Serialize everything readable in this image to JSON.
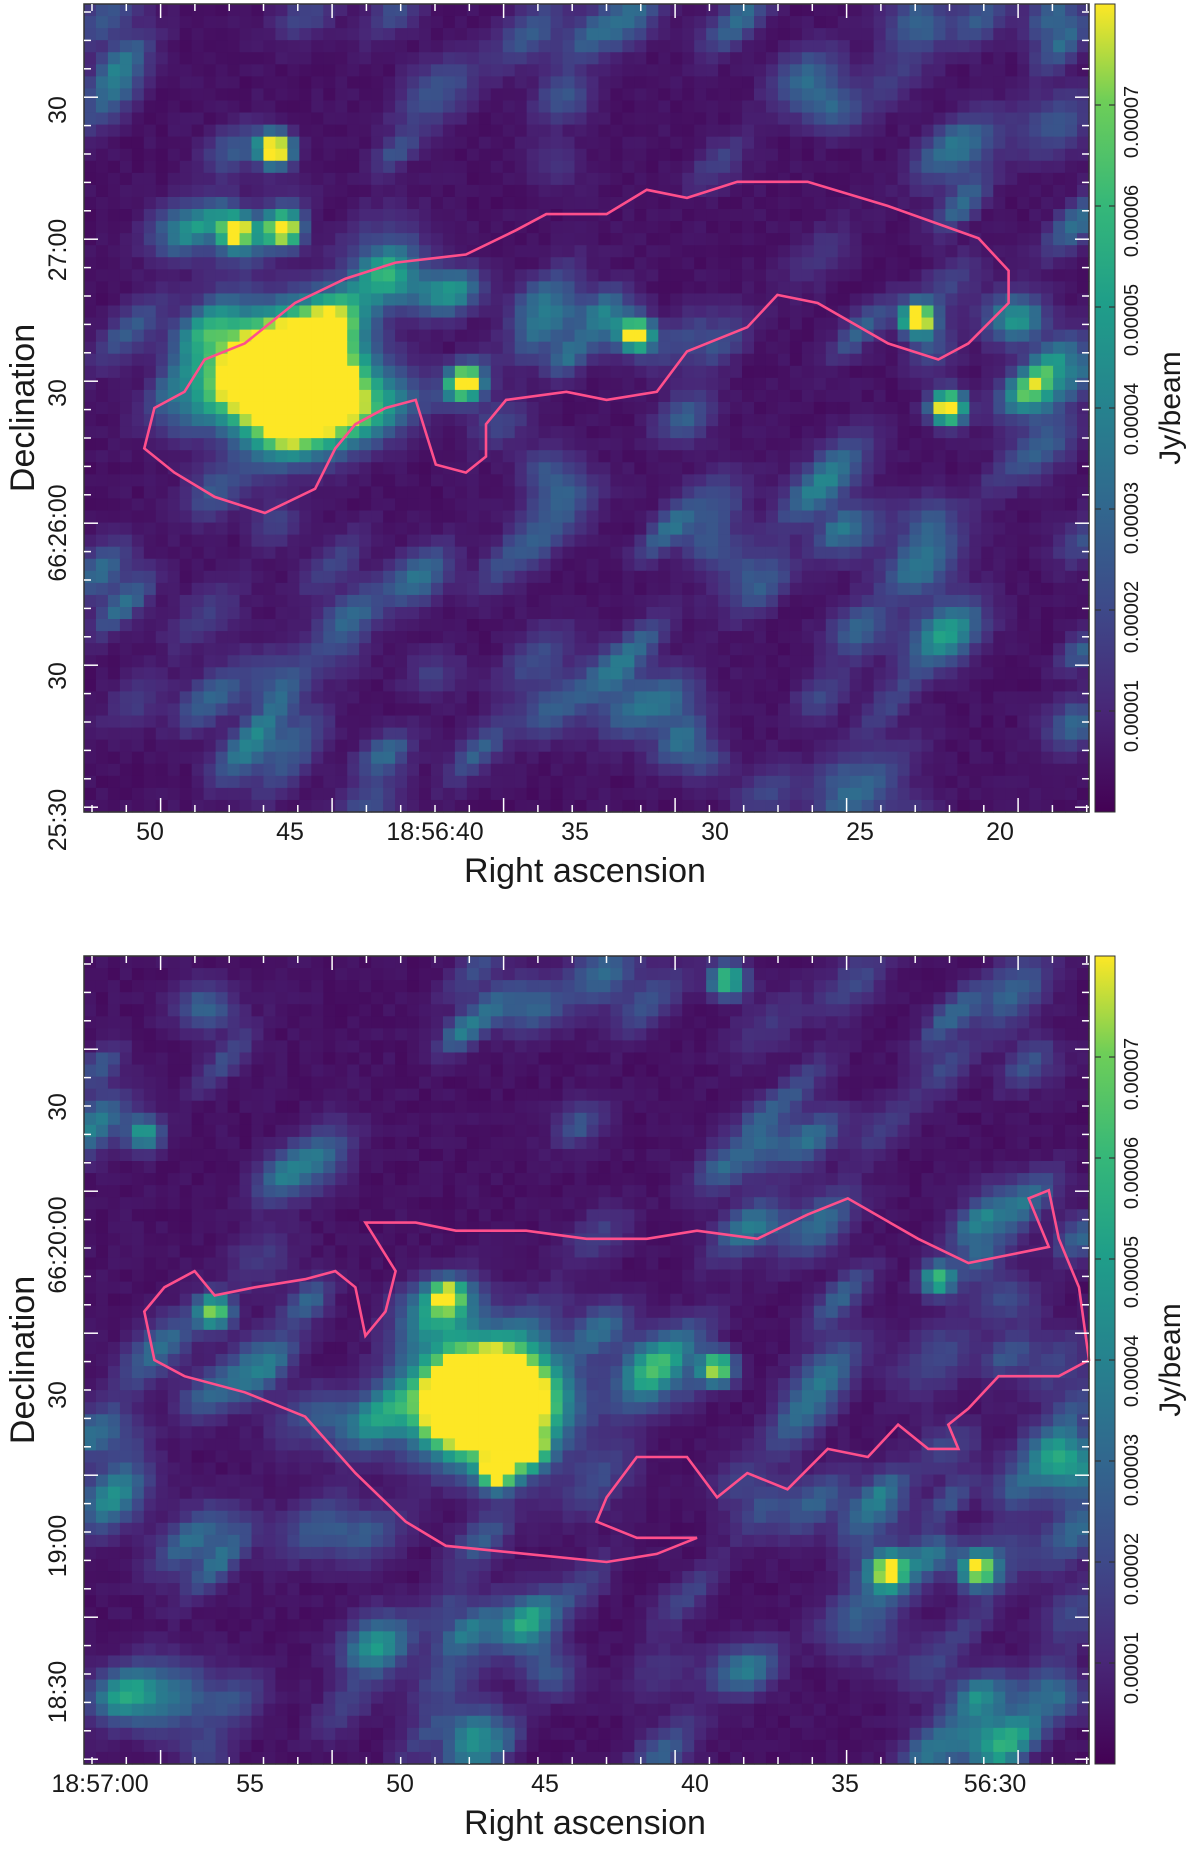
{
  "chart_data": [
    {
      "type": "heatmap",
      "title": "",
      "xlabel": "Right ascension",
      "ylabel": "Declination",
      "x_ticks": [
        "50",
        "45",
        "18:56:40",
        "35",
        "30",
        "25",
        "20"
      ],
      "y_ticks": [
        "30",
        "27:00",
        "30",
        "66:26:00",
        "30",
        "25:30"
      ],
      "colorbar": {
        "label": "Jy/beam",
        "ticks": [
          "0.00001",
          "0.00002",
          "0.00003",
          "0.00004",
          "0.00005",
          "0.00006",
          "0.00007"
        ],
        "colormap": "viridis",
        "range": [
          0,
          8e-05
        ]
      },
      "contour_color": "#ff4f8b",
      "grid": false,
      "sources": [
        {
          "x": 0.2,
          "y": 0.46,
          "peak": 1.0,
          "size": "large"
        },
        {
          "x": 0.38,
          "y": 0.47,
          "peak": 0.9
        },
        {
          "x": 0.55,
          "y": 0.41,
          "peak": 0.9
        },
        {
          "x": 0.83,
          "y": 0.39,
          "peak": 1.0
        },
        {
          "x": 0.86,
          "y": 0.5,
          "peak": 1.0
        },
        {
          "x": 0.19,
          "y": 0.18,
          "peak": 1.0
        },
        {
          "x": 0.15,
          "y": 0.28,
          "peak": 0.85
        },
        {
          "x": 0.2,
          "y": 0.28,
          "peak": 0.85
        }
      ],
      "contour": [
        [
          0.07,
          0.5
        ],
        [
          0.1,
          0.48
        ],
        [
          0.12,
          0.44
        ],
        [
          0.16,
          0.42
        ],
        [
          0.21,
          0.37
        ],
        [
          0.26,
          0.34
        ],
        [
          0.31,
          0.32
        ],
        [
          0.38,
          0.31
        ],
        [
          0.43,
          0.28
        ],
        [
          0.46,
          0.26
        ],
        [
          0.52,
          0.26
        ],
        [
          0.56,
          0.23
        ],
        [
          0.6,
          0.24
        ],
        [
          0.65,
          0.22
        ],
        [
          0.72,
          0.22
        ],
        [
          0.8,
          0.25
        ],
        [
          0.89,
          0.29
        ],
        [
          0.92,
          0.33
        ],
        [
          0.92,
          0.37
        ],
        [
          0.88,
          0.42
        ],
        [
          0.85,
          0.44
        ],
        [
          0.8,
          0.42
        ],
        [
          0.73,
          0.37
        ],
        [
          0.69,
          0.36
        ],
        [
          0.66,
          0.4
        ],
        [
          0.6,
          0.43
        ],
        [
          0.57,
          0.48
        ],
        [
          0.52,
          0.49
        ],
        [
          0.48,
          0.48
        ],
        [
          0.42,
          0.49
        ],
        [
          0.4,
          0.52
        ],
        [
          0.4,
          0.56
        ],
        [
          0.38,
          0.58
        ],
        [
          0.35,
          0.57
        ],
        [
          0.34,
          0.53
        ],
        [
          0.33,
          0.49
        ],
        [
          0.3,
          0.5
        ],
        [
          0.27,
          0.52
        ],
        [
          0.25,
          0.55
        ],
        [
          0.23,
          0.6
        ],
        [
          0.18,
          0.63
        ],
        [
          0.13,
          0.61
        ],
        [
          0.09,
          0.58
        ],
        [
          0.06,
          0.55
        ],
        [
          0.07,
          0.5
        ]
      ]
    },
    {
      "type": "heatmap",
      "title": "",
      "xlabel": "Right ascension",
      "ylabel": "Declination",
      "x_ticks": [
        "18:57:00",
        "55",
        "50",
        "45",
        "40",
        "35",
        "56:30"
      ],
      "y_ticks": [
        "30",
        "66:20:00",
        "30",
        "19:00",
        "18:30"
      ],
      "colorbar": {
        "label": "Jy/beam",
        "ticks": [
          "0.00001",
          "0.00002",
          "0.00003",
          "0.00004",
          "0.00005",
          "0.00006",
          "0.00007"
        ],
        "colormap": "viridis",
        "range": [
          0,
          8e-05
        ]
      },
      "contour_color": "#ff4f8b",
      "grid": false,
      "sources": [
        {
          "x": 0.4,
          "y": 0.55,
          "peak": 1.0,
          "size": "large"
        },
        {
          "x": 0.44,
          "y": 0.61,
          "peak": 0.9
        },
        {
          "x": 0.41,
          "y": 0.64,
          "peak": 0.75
        },
        {
          "x": 0.63,
          "y": 0.51,
          "peak": 0.75
        },
        {
          "x": 0.13,
          "y": 0.44,
          "peak": 0.7
        },
        {
          "x": 0.36,
          "y": 0.42,
          "peak": 0.65
        },
        {
          "x": 0.85,
          "y": 0.4,
          "peak": 0.6
        },
        {
          "x": 0.89,
          "y": 0.76,
          "peak": 0.75
        },
        {
          "x": 0.8,
          "y": 0.76,
          "peak": 0.6
        },
        {
          "x": 0.64,
          "y": 0.03,
          "peak": 0.65
        },
        {
          "x": 0.06,
          "y": 0.22,
          "peak": 0.5
        }
      ],
      "contour": [
        [
          0.06,
          0.44
        ],
        [
          0.08,
          0.41
        ],
        [
          0.11,
          0.39
        ],
        [
          0.13,
          0.42
        ],
        [
          0.17,
          0.41
        ],
        [
          0.22,
          0.4
        ],
        [
          0.25,
          0.39
        ],
        [
          0.27,
          0.41
        ],
        [
          0.28,
          0.47
        ],
        [
          0.3,
          0.44
        ],
        [
          0.31,
          0.39
        ],
        [
          0.28,
          0.33
        ],
        [
          0.33,
          0.33
        ],
        [
          0.37,
          0.34
        ],
        [
          0.44,
          0.34
        ],
        [
          0.5,
          0.35
        ],
        [
          0.56,
          0.35
        ],
        [
          0.61,
          0.34
        ],
        [
          0.67,
          0.35
        ],
        [
          0.72,
          0.32
        ],
        [
          0.76,
          0.3
        ],
        [
          0.83,
          0.35
        ],
        [
          0.88,
          0.38
        ],
        [
          0.92,
          0.37
        ],
        [
          0.96,
          0.36
        ],
        [
          0.94,
          0.3
        ],
        [
          0.96,
          0.29
        ],
        [
          0.97,
          0.35
        ],
        [
          0.99,
          0.41
        ],
        [
          1.0,
          0.5
        ],
        [
          0.97,
          0.52
        ],
        [
          0.91,
          0.52
        ],
        [
          0.88,
          0.56
        ],
        [
          0.86,
          0.58
        ],
        [
          0.87,
          0.61
        ],
        [
          0.84,
          0.61
        ],
        [
          0.81,
          0.58
        ],
        [
          0.78,
          0.62
        ],
        [
          0.74,
          0.61
        ],
        [
          0.7,
          0.66
        ],
        [
          0.66,
          0.64
        ],
        [
          0.63,
          0.67
        ],
        [
          0.6,
          0.62
        ],
        [
          0.55,
          0.62
        ],
        [
          0.52,
          0.67
        ],
        [
          0.51,
          0.7
        ],
        [
          0.55,
          0.72
        ],
        [
          0.61,
          0.72
        ],
        [
          0.57,
          0.74
        ],
        [
          0.52,
          0.75
        ],
        [
          0.44,
          0.74
        ],
        [
          0.36,
          0.73
        ],
        [
          0.32,
          0.7
        ],
        [
          0.27,
          0.64
        ],
        [
          0.22,
          0.57
        ],
        [
          0.16,
          0.54
        ],
        [
          0.1,
          0.52
        ],
        [
          0.07,
          0.5
        ],
        [
          0.06,
          0.44
        ]
      ]
    }
  ]
}
